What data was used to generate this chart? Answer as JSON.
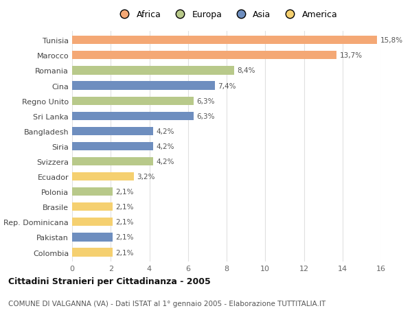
{
  "categories": [
    "Tunisia",
    "Marocco",
    "Romania",
    "Cina",
    "Regno Unito",
    "Sri Lanka",
    "Bangladesh",
    "Siria",
    "Svizzera",
    "Ecuador",
    "Polonia",
    "Brasile",
    "Rep. Dominicana",
    "Pakistan",
    "Colombia"
  ],
  "values": [
    15.8,
    13.7,
    8.4,
    7.4,
    6.3,
    6.3,
    4.2,
    4.2,
    4.2,
    3.2,
    2.1,
    2.1,
    2.1,
    2.1,
    2.1
  ],
  "labels": [
    "15,8%",
    "13,7%",
    "8,4%",
    "7,4%",
    "6,3%",
    "6,3%",
    "4,2%",
    "4,2%",
    "4,2%",
    "3,2%",
    "2,1%",
    "2,1%",
    "2,1%",
    "2,1%",
    "2,1%"
  ],
  "continents": [
    "Africa",
    "Africa",
    "Europa",
    "Asia",
    "Europa",
    "Asia",
    "Asia",
    "Asia",
    "Europa",
    "America",
    "Europa",
    "America",
    "America",
    "Asia",
    "America"
  ],
  "colors": {
    "Africa": "#F4A875",
    "Europa": "#B8C98A",
    "Asia": "#6E8EBF",
    "America": "#F5D070"
  },
  "title": "Cittadini Stranieri per Cittadinanza - 2005",
  "subtitle": "COMUNE DI VALGANNA (VA) - Dati ISTAT al 1° gennaio 2005 - Elaborazione TUTTITALIA.IT",
  "xlim": [
    0,
    16
  ],
  "xticks": [
    0,
    2,
    4,
    6,
    8,
    10,
    12,
    14,
    16
  ],
  "background_color": "#ffffff",
  "grid_color": "#e0e0e0"
}
